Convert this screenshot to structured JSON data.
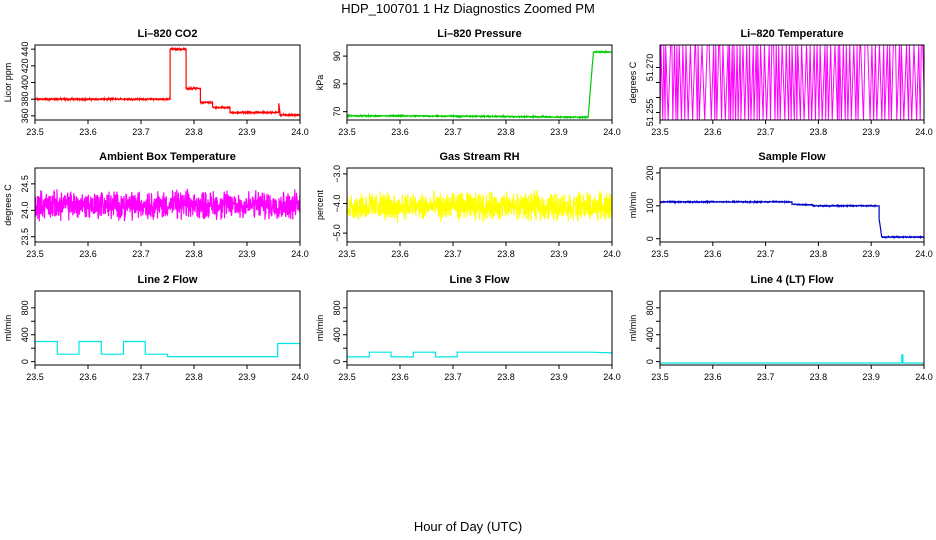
{
  "figure": {
    "title": "HDP_100701  1 Hz Diagnostics Zoomed PM",
    "xlabel": "Hour of Day (UTC)"
  },
  "chart_data": [
    {
      "type": "line",
      "title": "Li–820 CO2",
      "ylabel": "Licor ppm",
      "color": "#ff0000",
      "xlim": [
        23.5,
        24.0
      ],
      "ylim": [
        355,
        445
      ],
      "xticks": [
        "23.5",
        "23.6",
        "23.7",
        "23.8",
        "23.9",
        "24.0"
      ],
      "yticks": [
        {
          "v": 360,
          "l": "360"
        },
        {
          "v": 380,
          "l": "380"
        },
        {
          "v": 400,
          "l": "400"
        },
        {
          "v": 420,
          "l": "420"
        },
        {
          "v": 440,
          "l": "440"
        }
      ],
      "series": [
        {
          "x": [
            23.5,
            23.755,
            23.755,
            23.785,
            23.785,
            23.812,
            23.812,
            23.835,
            23.835,
            23.868,
            23.868,
            23.96,
            23.96,
            23.962,
            23.962,
            24.0
          ],
          "y": [
            380,
            380,
            440,
            440,
            393,
            393,
            376,
            376,
            370,
            370,
            364,
            364,
            375,
            365,
            361,
            361
          ],
          "noise": 0.7
        }
      ]
    },
    {
      "type": "line",
      "title": "Li–820 Pressure",
      "ylabel": "kPa",
      "color": "#00cc00",
      "xlim": [
        23.5,
        24.0
      ],
      "ylim": [
        67,
        94
      ],
      "xticks": [
        "23.5",
        "23.6",
        "23.7",
        "23.8",
        "23.9",
        "24.0"
      ],
      "yticks": [
        {
          "v": 70,
          "l": "70"
        },
        {
          "v": 80,
          "l": "80"
        },
        {
          "v": 90,
          "l": "90"
        }
      ],
      "series": [
        {
          "x": [
            23.5,
            23.7,
            23.95,
            23.955,
            23.96,
            23.965,
            24.0
          ],
          "y": [
            68.5,
            68.4,
            68.0,
            68.0,
            80,
            91.5,
            91.5
          ],
          "noise": 0.15
        }
      ]
    },
    {
      "type": "line",
      "title": "Li–820 Temperature",
      "ylabel": "degrees C",
      "color": "#ff00ff",
      "xlim": [
        23.5,
        24.0
      ],
      "ylim": [
        51.2525,
        51.2775
      ],
      "xticks": [
        "23.5",
        "23.6",
        "23.7",
        "23.8",
        "23.9",
        "24.0"
      ],
      "yticks": [
        {
          "v": 51.255,
          "l": "51.255"
        },
        {
          "v": 51.26,
          "l": ""
        },
        {
          "v": 51.265,
          "l": ""
        },
        {
          "v": 51.27,
          "l": "51.270"
        }
      ],
      "series": [
        {
          "x": [
            23.5,
            24.0
          ],
          "y": [
            51.2525,
            51.2775
          ],
          "levels": [
            51.2525,
            51.2775
          ]
        }
      ]
    },
    {
      "type": "line",
      "title": "Ambient Box Temperature",
      "ylabel": "degrees C",
      "color": "#ff00ff",
      "xlim": [
        23.5,
        24.0
      ],
      "ylim": [
        23.4,
        24.8
      ],
      "xticks": [
        "23.5",
        "23.6",
        "23.7",
        "23.8",
        "23.9",
        "24.0"
      ],
      "yticks": [
        {
          "v": 23.5,
          "l": "23.5"
        },
        {
          "v": 24.0,
          "l": "24.0"
        },
        {
          "v": 24.5,
          "l": "24.5"
        }
      ],
      "series": [
        {
          "x": [
            23.5,
            24.0
          ],
          "y": [
            24.1,
            24.1
          ],
          "noise": 0.2
        }
      ]
    },
    {
      "type": "line",
      "title": "Gas Stream RH",
      "ylabel": "percent",
      "color": "#ffff00",
      "xlim": [
        23.5,
        24.0
      ],
      "ylim": [
        -5.3,
        -2.8
      ],
      "xticks": [
        "23.5",
        "23.6",
        "23.7",
        "23.8",
        "23.9",
        "24.0"
      ],
      "yticks": [
        {
          "v": -5.0,
          "l": "−5.0"
        },
        {
          "v": -4.0,
          "l": "−4.0"
        },
        {
          "v": -3.0,
          "l": "−3.0"
        }
      ],
      "series": [
        {
          "x": [
            23.5,
            24.0
          ],
          "y": [
            -4.1,
            -4.1
          ],
          "noise": 0.35
        }
      ]
    },
    {
      "type": "line",
      "title": "Sample Flow",
      "ylabel": "ml/min",
      "color": "#0000cc",
      "xlim": [
        23.5,
        24.0
      ],
      "ylim": [
        -10,
        215
      ],
      "xticks": [
        "23.5",
        "23.6",
        "23.7",
        "23.8",
        "23.9",
        "24.0"
      ],
      "yticks": [
        {
          "v": 0,
          "l": "0"
        },
        {
          "v": 100,
          "l": "100"
        },
        {
          "v": 200,
          "l": "200"
        }
      ],
      "series": [
        {
          "x": [
            23.5,
            23.75,
            23.75,
            23.79,
            23.79,
            23.915,
            23.915,
            23.92,
            24.0
          ],
          "y": [
            112,
            112,
            105,
            103,
            100,
            100,
            60,
            5,
            5
          ],
          "noise": 1.2
        }
      ]
    },
    {
      "type": "line",
      "title": "Line 2 Flow",
      "ylabel": "ml/min",
      "color": "#00e5e5",
      "xlim": [
        23.5,
        24.0
      ],
      "ylim": [
        -50,
        1050
      ],
      "xticks": [
        "23.5",
        "23.6",
        "23.7",
        "23.8",
        "23.9",
        "24.0"
      ],
      "yticks": [
        {
          "v": 0,
          "l": "0"
        },
        {
          "v": 200,
          "l": ""
        },
        {
          "v": 400,
          "l": "400"
        },
        {
          "v": 600,
          "l": ""
        },
        {
          "v": 800,
          "l": "800"
        }
      ],
      "series": [
        {
          "x": [
            23.5,
            23.5,
            23.542,
            23.542,
            23.583,
            23.583,
            23.625,
            23.625,
            23.667,
            23.667,
            23.708,
            23.708,
            23.75,
            23.75,
            23.958,
            23.958,
            24.0
          ],
          "y": [
            130,
            300,
            300,
            110,
            110,
            300,
            300,
            110,
            110,
            300,
            300,
            110,
            110,
            75,
            75,
            270,
            270
          ]
        }
      ]
    },
    {
      "type": "line",
      "title": "Line 3 Flow",
      "ylabel": "ml/min",
      "color": "#00e5e5",
      "xlim": [
        23.5,
        24.0
      ],
      "ylim": [
        -50,
        1050
      ],
      "xticks": [
        "23.5",
        "23.6",
        "23.7",
        "23.8",
        "23.9",
        "24.0"
      ],
      "yticks": [
        {
          "v": 0,
          "l": "0"
        },
        {
          "v": 200,
          "l": ""
        },
        {
          "v": 400,
          "l": "400"
        },
        {
          "v": 600,
          "l": ""
        },
        {
          "v": 800,
          "l": "800"
        }
      ],
      "series": [
        {
          "x": [
            23.5,
            23.5,
            23.542,
            23.542,
            23.583,
            23.583,
            23.625,
            23.625,
            23.667,
            23.667,
            23.708,
            23.708,
            23.958,
            24.0
          ],
          "y": [
            140,
            70,
            70,
            140,
            140,
            70,
            70,
            140,
            140,
            70,
            70,
            140,
            140,
            130
          ]
        }
      ]
    },
    {
      "type": "line",
      "title": "Line 4 (LT) Flow",
      "ylabel": "ml/min",
      "color": "#00e5e5",
      "xlim": [
        23.5,
        24.0
      ],
      "ylim": [
        -50,
        1050
      ],
      "xticks": [
        "23.5",
        "23.6",
        "23.7",
        "23.8",
        "23.9",
        "24.0"
      ],
      "yticks": [
        {
          "v": 0,
          "l": "0"
        },
        {
          "v": 200,
          "l": ""
        },
        {
          "v": 400,
          "l": "400"
        },
        {
          "v": 600,
          "l": ""
        },
        {
          "v": 800,
          "l": "800"
        }
      ],
      "series": [
        {
          "x": [
            23.5,
            23.958,
            23.958,
            23.96,
            23.96,
            24.0
          ],
          "y": [
            -20,
            -20,
            100,
            100,
            -20,
            -20
          ]
        }
      ]
    }
  ]
}
